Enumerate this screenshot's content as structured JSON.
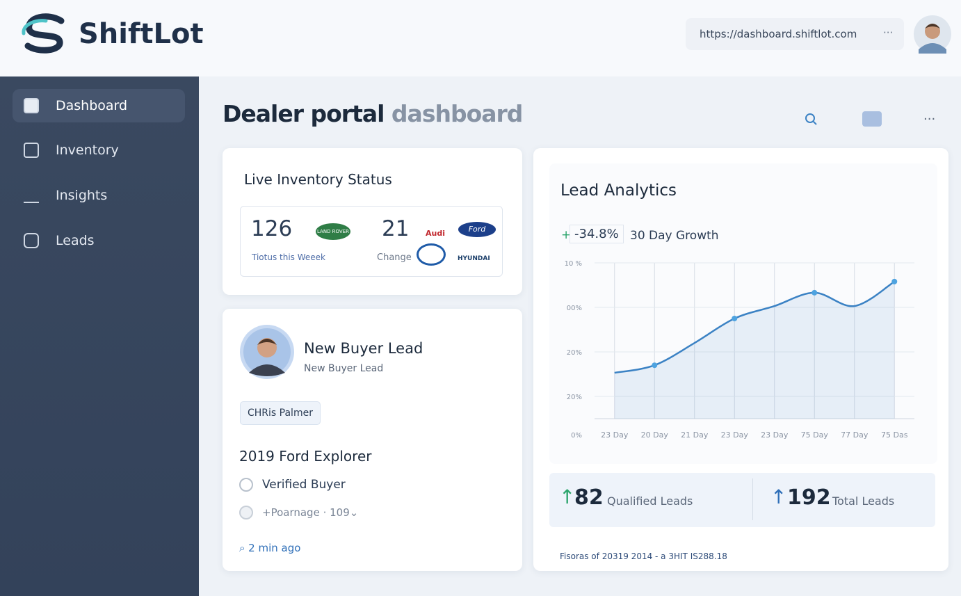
{
  "header": {
    "brand": "ShiftLot",
    "url": "https://dashboard.shiftlot.com"
  },
  "nav": [
    "Dashboard",
    "Inventory",
    "Insights",
    "Leads"
  ],
  "page_title": {
    "main": "Dealer portal",
    "accent": "dashboard"
  },
  "inventory": {
    "title": "Live Inventory Status",
    "stats": [
      {
        "value": "126",
        "label": "Tiotus this Weeek"
      },
      {
        "value": "21",
        "label": "Change"
      }
    ],
    "brands": [
      "LAND ROVER",
      "Audi",
      "Ford",
      "HYUNDAI"
    ]
  },
  "lead": {
    "title": "New Buyer Lead",
    "subtitle": "New Buyer Lead",
    "name": "CHRis Palmer",
    "vehicle": "2019 Ford Explorer",
    "checks": [
      "Verified Buyer",
      "+Poarnage · 109⌄"
    ],
    "time": "2 min ago"
  },
  "analytics": {
    "title": "Lead Analytics",
    "growth_sign": "+",
    "growth": "-34.8%",
    "growth_label": "30 Day Growth",
    "chart": {
      "type": "line",
      "categories": [
        "23 Day",
        "20 Day",
        "21 Day",
        "23 Day",
        "23 Day",
        "75 Day",
        "77 Day",
        "75 Das"
      ],
      "values": [
        1.53,
        1.7,
        2.2,
        2.75,
        3.03,
        3.33,
        3.03,
        3.58
      ],
      "color": "#3b82c4",
      "ylim": [
        0.5,
        4
      ],
      "yticks": [
        {
          "value": 1,
          "label": "20%"
        },
        {
          "value": 2,
          "label": "20%"
        },
        {
          "value": 3,
          "label": "00%"
        },
        {
          "value": 4,
          "label": "10 %"
        }
      ],
      "origin_label": "0%",
      "grid": true
    },
    "stats": [
      {
        "value": "82",
        "label": "Qualified Leads"
      },
      {
        "value": "192",
        "label": "Total Leads"
      }
    ],
    "footer": "Fisoras of 20319 2014 - a 3HIT IS288.18"
  }
}
